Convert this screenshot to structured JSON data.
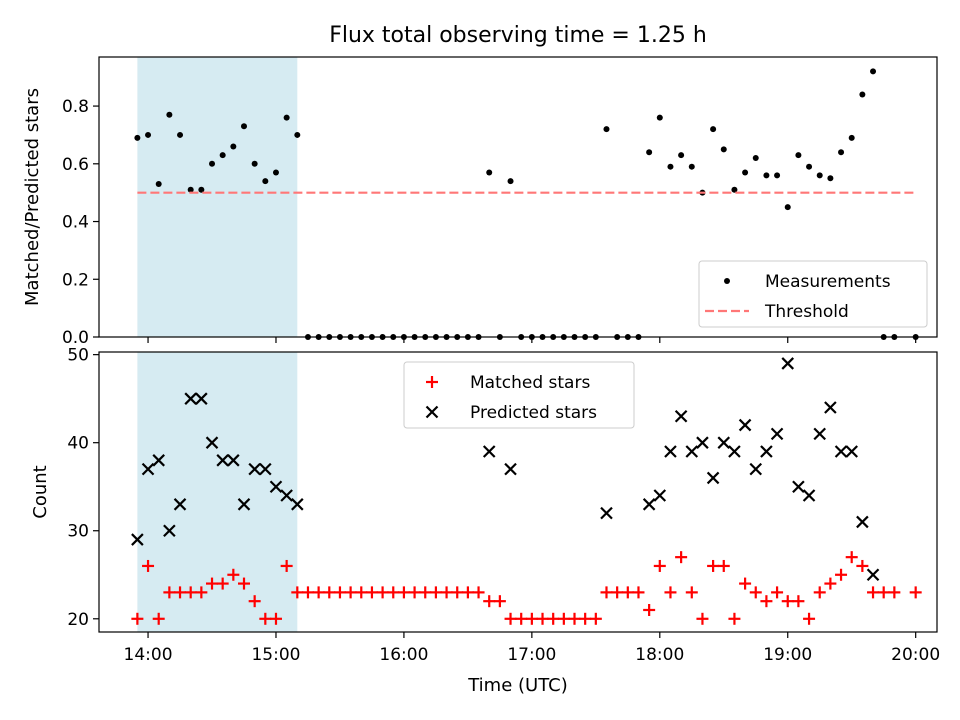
{
  "figure": {
    "title": "Flux total observing time = 1.25 h"
  },
  "chart_data": [
    {
      "type": "scatter",
      "ylabel": "Matched/Predicted stars",
      "xlabel": "",
      "xlim": [
        "13:37",
        "20:10"
      ],
      "ylim": [
        0,
        0.97
      ],
      "yticks": [
        0.0,
        0.2,
        0.4,
        0.6,
        0.8
      ],
      "yticklabels": [
        "0.0",
        "0.2",
        "0.4",
        "0.6",
        "0.8"
      ],
      "xticks": [
        "14:00",
        "15:00",
        "16:00",
        "17:00",
        "18:00",
        "19:00",
        "20:00"
      ],
      "show_xticklabels": false,
      "highlight_span": [
        "13:55",
        "15:10"
      ],
      "highlight_color": "#add8e6",
      "legend_position": "lower right",
      "series": [
        {
          "name": "Measurements",
          "kind": "points",
          "color": "#000000",
          "points": [
            [
              "13:55",
              0.69
            ],
            [
              "14:00",
              0.7
            ],
            [
              "14:05",
              0.53
            ],
            [
              "14:10",
              0.77
            ],
            [
              "14:15",
              0.7
            ],
            [
              "14:20",
              0.51
            ],
            [
              "14:25",
              0.51
            ],
            [
              "14:30",
              0.6
            ],
            [
              "14:35",
              0.63
            ],
            [
              "14:40",
              0.66
            ],
            [
              "14:45",
              0.73
            ],
            [
              "14:50",
              0.6
            ],
            [
              "14:55",
              0.54
            ],
            [
              "15:00",
              0.57
            ],
            [
              "15:05",
              0.76
            ],
            [
              "15:10",
              0.7
            ],
            [
              "15:15",
              0.0
            ],
            [
              "15:20",
              0.0
            ],
            [
              "15:25",
              0.0
            ],
            [
              "15:30",
              0.0
            ],
            [
              "15:35",
              0.0
            ],
            [
              "15:40",
              0.0
            ],
            [
              "15:45",
              0.0
            ],
            [
              "15:50",
              0.0
            ],
            [
              "15:55",
              0.0
            ],
            [
              "16:00",
              0.0
            ],
            [
              "16:05",
              0.0
            ],
            [
              "16:10",
              0.0
            ],
            [
              "16:15",
              0.0
            ],
            [
              "16:20",
              0.0
            ],
            [
              "16:25",
              0.0
            ],
            [
              "16:30",
              0.0
            ],
            [
              "16:35",
              0.0
            ],
            [
              "16:40",
              0.57
            ],
            [
              "16:45",
              0.0
            ],
            [
              "16:50",
              0.54
            ],
            [
              "16:55",
              0.0
            ],
            [
              "17:00",
              0.0
            ],
            [
              "17:05",
              0.0
            ],
            [
              "17:10",
              0.0
            ],
            [
              "17:15",
              0.0
            ],
            [
              "17:20",
              0.0
            ],
            [
              "17:25",
              0.0
            ],
            [
              "17:30",
              0.0
            ],
            [
              "17:35",
              0.72
            ],
            [
              "17:40",
              0.0
            ],
            [
              "17:45",
              0.0
            ],
            [
              "17:50",
              0.0
            ],
            [
              "17:55",
              0.64
            ],
            [
              "18:00",
              0.76
            ],
            [
              "18:05",
              0.59
            ],
            [
              "18:10",
              0.63
            ],
            [
              "18:15",
              0.59
            ],
            [
              "18:20",
              0.5
            ],
            [
              "18:25",
              0.72
            ],
            [
              "18:30",
              0.65
            ],
            [
              "18:35",
              0.51
            ],
            [
              "18:40",
              0.57
            ],
            [
              "18:45",
              0.62
            ],
            [
              "18:50",
              0.56
            ],
            [
              "18:55",
              0.56
            ],
            [
              "19:00",
              0.45
            ],
            [
              "19:05",
              0.63
            ],
            [
              "19:10",
              0.59
            ],
            [
              "19:15",
              0.56
            ],
            [
              "19:20",
              0.55
            ],
            [
              "19:25",
              0.64
            ],
            [
              "19:30",
              0.69
            ],
            [
              "19:35",
              0.84
            ],
            [
              "19:40",
              0.92
            ],
            [
              "19:45",
              0.0
            ],
            [
              "19:50",
              0.0
            ],
            [
              "20:00",
              0.0
            ]
          ]
        },
        {
          "name": "Threshold",
          "kind": "dashed-line",
          "color": "#ff7777",
          "points": [
            [
              "13:55",
              0.5
            ],
            [
              "20:00",
              0.5
            ]
          ]
        }
      ]
    },
    {
      "type": "scatter",
      "ylabel": "Count",
      "xlabel": "Time (UTC)",
      "xlim": [
        "13:37",
        "20:10"
      ],
      "ylim": [
        18.5,
        50.3
      ],
      "yticks": [
        20,
        30,
        40,
        50
      ],
      "yticklabels": [
        "20",
        "30",
        "40",
        "50"
      ],
      "xticks": [
        "14:00",
        "15:00",
        "16:00",
        "17:00",
        "18:00",
        "19:00",
        "20:00"
      ],
      "xticklabels": [
        "14:00",
        "15:00",
        "16:00",
        "17:00",
        "18:00",
        "19:00",
        "20:00"
      ],
      "show_xticklabels": true,
      "highlight_span": [
        "13:55",
        "15:10"
      ],
      "highlight_color": "#add8e6",
      "legend_position": "upper center",
      "series": [
        {
          "name": "Matched stars",
          "kind": "plus",
          "color": "#ff0000",
          "points": [
            [
              "13:55",
              20
            ],
            [
              "14:00",
              26
            ],
            [
              "14:05",
              20
            ],
            [
              "14:10",
              23
            ],
            [
              "14:15",
              23
            ],
            [
              "14:20",
              23
            ],
            [
              "14:25",
              23
            ],
            [
              "14:30",
              24
            ],
            [
              "14:35",
              24
            ],
            [
              "14:40",
              25
            ],
            [
              "14:45",
              24
            ],
            [
              "14:50",
              22
            ],
            [
              "14:55",
              20
            ],
            [
              "15:00",
              20
            ],
            [
              "15:05",
              26
            ],
            [
              "15:10",
              23
            ],
            [
              "15:15",
              23
            ],
            [
              "15:20",
              23
            ],
            [
              "15:25",
              23
            ],
            [
              "15:30",
              23
            ],
            [
              "15:35",
              23
            ],
            [
              "15:40",
              23
            ],
            [
              "15:45",
              23
            ],
            [
              "15:50",
              23
            ],
            [
              "15:55",
              23
            ],
            [
              "16:00",
              23
            ],
            [
              "16:05",
              23
            ],
            [
              "16:10",
              23
            ],
            [
              "16:15",
              23
            ],
            [
              "16:20",
              23
            ],
            [
              "16:25",
              23
            ],
            [
              "16:30",
              23
            ],
            [
              "16:35",
              23
            ],
            [
              "16:40",
              22
            ],
            [
              "16:45",
              22
            ],
            [
              "16:50",
              20
            ],
            [
              "16:55",
              20
            ],
            [
              "17:00",
              20
            ],
            [
              "17:05",
              20
            ],
            [
              "17:10",
              20
            ],
            [
              "17:15",
              20
            ],
            [
              "17:20",
              20
            ],
            [
              "17:25",
              20
            ],
            [
              "17:30",
              20
            ],
            [
              "17:35",
              23
            ],
            [
              "17:40",
              23
            ],
            [
              "17:45",
              23
            ],
            [
              "17:50",
              23
            ],
            [
              "17:55",
              21
            ],
            [
              "18:00",
              26
            ],
            [
              "18:05",
              23
            ],
            [
              "18:10",
              27
            ],
            [
              "18:15",
              23
            ],
            [
              "18:20",
              20
            ],
            [
              "18:25",
              26
            ],
            [
              "18:30",
              26
            ],
            [
              "18:35",
              20
            ],
            [
              "18:40",
              24
            ],
            [
              "18:45",
              23
            ],
            [
              "18:50",
              22
            ],
            [
              "18:55",
              23
            ],
            [
              "19:00",
              22
            ],
            [
              "19:05",
              22
            ],
            [
              "19:10",
              20
            ],
            [
              "19:15",
              23
            ],
            [
              "19:20",
              24
            ],
            [
              "19:25",
              25
            ],
            [
              "19:30",
              27
            ],
            [
              "19:35",
              26
            ],
            [
              "19:40",
              23
            ],
            [
              "19:45",
              23
            ],
            [
              "19:50",
              23
            ],
            [
              "20:00",
              23
            ]
          ]
        },
        {
          "name": "Predicted stars",
          "kind": "x",
          "color": "#000000",
          "points": [
            [
              "13:55",
              29
            ],
            [
              "14:00",
              37
            ],
            [
              "14:05",
              38
            ],
            [
              "14:10",
              30
            ],
            [
              "14:15",
              33
            ],
            [
              "14:20",
              45
            ],
            [
              "14:25",
              45
            ],
            [
              "14:30",
              40
            ],
            [
              "14:35",
              38
            ],
            [
              "14:40",
              38
            ],
            [
              "14:45",
              33
            ],
            [
              "14:50",
              37
            ],
            [
              "14:55",
              37
            ],
            [
              "15:00",
              35
            ],
            [
              "15:05",
              34
            ],
            [
              "15:10",
              33
            ],
            [
              "16:40",
              39
            ],
            [
              "16:50",
              37
            ],
            [
              "17:35",
              32
            ],
            [
              "17:55",
              33
            ],
            [
              "18:00",
              34
            ],
            [
              "18:05",
              39
            ],
            [
              "18:10",
              43
            ],
            [
              "18:15",
              39
            ],
            [
              "18:20",
              40
            ],
            [
              "18:25",
              36
            ],
            [
              "18:30",
              40
            ],
            [
              "18:35",
              39
            ],
            [
              "18:40",
              42
            ],
            [
              "18:45",
              37
            ],
            [
              "18:50",
              39
            ],
            [
              "18:55",
              41
            ],
            [
              "19:00",
              49
            ],
            [
              "19:05",
              35
            ],
            [
              "19:10",
              34
            ],
            [
              "19:15",
              41
            ],
            [
              "19:20",
              44
            ],
            [
              "19:25",
              39
            ],
            [
              "19:30",
              39
            ],
            [
              "19:35",
              31
            ],
            [
              "19:40",
              25
            ]
          ]
        }
      ]
    }
  ]
}
